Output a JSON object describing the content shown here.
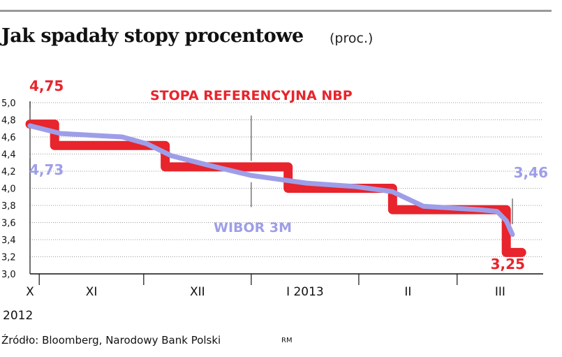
{
  "title": "Jak spadały stopy procentowe",
  "unit": "(proc.)",
  "source": "Źródło: Bloomberg, Narodowy Bank Polski",
  "initials": "RM",
  "colors": {
    "ref": "#e8242c",
    "wibor": "#9e9ee8",
    "grid": "#9a9a9a",
    "axis": "#111111"
  },
  "chart_data": {
    "type": "line",
    "xlim": [
      0,
      167
    ],
    "ylim": [
      3.0,
      5.0
    ],
    "yticks": [
      "3,0",
      "3,2",
      "3,4",
      "3,6",
      "3,8",
      "4,0",
      "4,2",
      "4,4",
      "4,6",
      "4,8",
      "5,0"
    ],
    "ytick_values": [
      3.0,
      3.2,
      3.4,
      3.6,
      3.8,
      4.0,
      4.2,
      4.4,
      4.6,
      4.8,
      5.0
    ],
    "grid": true,
    "x_categories": [
      {
        "label": "X",
        "from": 0,
        "to": 3
      },
      {
        "label": "XI",
        "from": 3,
        "to": 37
      },
      {
        "label": "XII",
        "from": 37,
        "to": 72
      },
      {
        "label": "I 2013",
        "from": 72,
        "to": 107
      },
      {
        "label": "II",
        "from": 107,
        "to": 139
      },
      {
        "label": "III",
        "from": 139,
        "to": 167
      }
    ],
    "month_boundaries": [
      3,
      37,
      72,
      107,
      139
    ],
    "year_label": "2012",
    "series": [
      {
        "name": "STOPA REFERENCYJNA NBP",
        "x": [
          0,
          8,
          8,
          44,
          44,
          84,
          84,
          118,
          118,
          155,
          155,
          160
        ],
        "values": [
          4.75,
          4.75,
          4.5,
          4.5,
          4.25,
          4.25,
          4.0,
          4.0,
          3.75,
          3.75,
          3.25,
          3.25
        ]
      },
      {
        "name": "WIBOR 3M",
        "x": [
          0,
          10,
          30,
          38,
          46,
          58,
          72,
          90,
          106,
          118,
          128,
          146,
          152,
          155,
          157
        ],
        "values": [
          4.73,
          4.64,
          4.6,
          4.52,
          4.38,
          4.27,
          4.15,
          4.06,
          4.02,
          3.96,
          3.79,
          3.75,
          3.73,
          3.62,
          3.46
        ]
      }
    ],
    "annotations": [
      {
        "text": "4,75",
        "x": 0,
        "y": 4.75,
        "series": 0
      },
      {
        "text": "4,73",
        "x": 0,
        "y": 4.73,
        "series": 1
      },
      {
        "text": "3,46",
        "x": 157,
        "y": 3.46,
        "series": 1
      },
      {
        "text": "3,25",
        "x": 160,
        "y": 3.25,
        "series": 0
      }
    ]
  }
}
